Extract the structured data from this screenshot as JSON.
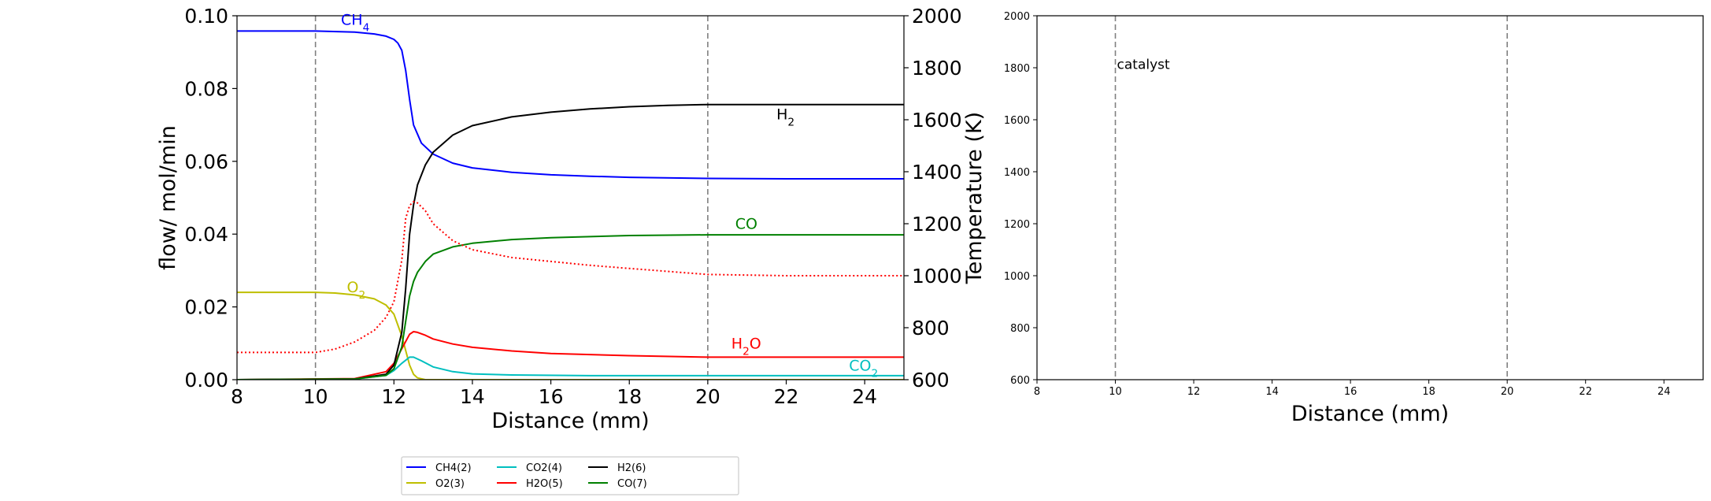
{
  "chart_data": [
    {
      "type": "line",
      "xlabel": "Distance (mm)",
      "ylabel": "flow/ mol/min",
      "y2label": "Temperature (K)",
      "xlim": [
        8,
        25
      ],
      "ylim": [
        0,
        0.1
      ],
      "y2lim": [
        600,
        2000
      ],
      "xticks": [
        "8",
        "10",
        "12",
        "14",
        "16",
        "18",
        "20",
        "22",
        "24"
      ],
      "yticks": [
        "0.00",
        "0.02",
        "0.04",
        "0.06",
        "0.08",
        "0.10"
      ],
      "y2ticks": [
        "600",
        "800",
        "1000",
        "1200",
        "1400",
        "1600",
        "1800",
        "2000"
      ],
      "grid": false,
      "vlines": [
        10,
        20
      ],
      "series": [
        {
          "name": "CH4(2)",
          "color": "#0000ff",
          "label": "CH",
          "label_sub": "4",
          "x": [
            8,
            10,
            11,
            11.5,
            11.8,
            12.0,
            12.1,
            12.2,
            12.3,
            12.4,
            12.5,
            12.7,
            13,
            13.5,
            14,
            15,
            16,
            17,
            18,
            20,
            22,
            25
          ],
          "y": [
            0.0958,
            0.0958,
            0.0955,
            0.095,
            0.0944,
            0.0935,
            0.0925,
            0.0905,
            0.085,
            0.077,
            0.07,
            0.065,
            0.062,
            0.0595,
            0.0582,
            0.057,
            0.0563,
            0.0559,
            0.0556,
            0.0553,
            0.0552,
            0.0552
          ]
        },
        {
          "name": "O2(3)",
          "color": "#bfbf00",
          "label": "O",
          "label_sub": "2",
          "x": [
            8,
            10,
            10.5,
            11,
            11.5,
            11.8,
            12.0,
            12.2,
            12.4,
            12.5,
            12.6,
            12.8,
            25
          ],
          "y": [
            0.024,
            0.024,
            0.0238,
            0.0233,
            0.0222,
            0.0205,
            0.018,
            0.012,
            0.004,
            0.0015,
            0.0005,
            0.0,
            0.0
          ]
        },
        {
          "name": "CO2(4)",
          "color": "#00bfbf",
          "label": "CO",
          "label_sub": "2",
          "x": [
            8,
            11,
            11.8,
            12.0,
            12.2,
            12.4,
            12.5,
            12.7,
            13,
            13.5,
            14,
            15,
            17,
            20,
            25
          ],
          "y": [
            0.0,
            0.0002,
            0.0012,
            0.0025,
            0.0045,
            0.0062,
            0.0062,
            0.0052,
            0.0035,
            0.0022,
            0.0016,
            0.0013,
            0.0011,
            0.0011,
            0.0011
          ]
        },
        {
          "name": "H2O(5)",
          "color": "#ff0000",
          "label": "H",
          "label_sub": "2",
          "label_tail": "O",
          "x": [
            8,
            11,
            11.8,
            12.0,
            12.2,
            12.4,
            12.5,
            12.6,
            12.8,
            13,
            13.5,
            14,
            15,
            16,
            18,
            20,
            22,
            25
          ],
          "y": [
            0.0,
            0.0003,
            0.0022,
            0.0045,
            0.0085,
            0.0125,
            0.0132,
            0.013,
            0.0122,
            0.0112,
            0.0098,
            0.0089,
            0.0079,
            0.0072,
            0.0066,
            0.0062,
            0.0062,
            0.0062
          ]
        },
        {
          "name": "H2(6)",
          "color": "#000000",
          "label": "H",
          "label_sub": "2",
          "x": [
            8,
            11,
            11.8,
            12.0,
            12.2,
            12.3,
            12.4,
            12.5,
            12.6,
            12.8,
            13,
            13.5,
            14,
            15,
            16,
            17,
            18,
            19,
            20,
            22,
            25
          ],
          "y": [
            0.0,
            0.0002,
            0.0015,
            0.004,
            0.013,
            0.025,
            0.04,
            0.048,
            0.0535,
            0.059,
            0.0625,
            0.0672,
            0.0698,
            0.0722,
            0.0735,
            0.0744,
            0.075,
            0.0754,
            0.0756,
            0.0756,
            0.0756
          ]
        },
        {
          "name": "CO(7)",
          "color": "#008000",
          "label": "CO",
          "x": [
            8,
            11,
            11.8,
            12.0,
            12.2,
            12.3,
            12.4,
            12.5,
            12.6,
            12.8,
            13,
            13.5,
            14,
            15,
            16,
            17,
            18,
            20,
            22,
            25
          ],
          "y": [
            0.0,
            0.0002,
            0.0012,
            0.003,
            0.009,
            0.016,
            0.023,
            0.027,
            0.0295,
            0.0325,
            0.0345,
            0.0365,
            0.0375,
            0.0385,
            0.039,
            0.0393,
            0.0396,
            0.0398,
            0.0398,
            0.0398
          ]
        }
      ],
      "temperature_series": {
        "color": "#ff0000",
        "style": "dotted",
        "x": [
          8,
          10,
          10.5,
          11,
          11.5,
          11.8,
          12.0,
          12.2,
          12.3,
          12.4,
          12.5,
          12.6,
          12.8,
          13,
          13.5,
          14,
          15,
          16,
          17,
          18,
          20,
          22,
          25
        ],
        "y": [
          705,
          705,
          718,
          745,
          790,
          840,
          900,
          1060,
          1220,
          1270,
          1285,
          1280,
          1250,
          1200,
          1135,
          1100,
          1070,
          1055,
          1040,
          1028,
          1005,
          1000,
          1000
        ]
      },
      "legend": {
        "placement": "below",
        "columns": 4,
        "entries": [
          "CH4(2)",
          "O2(3)",
          "CO2(4)",
          "H2O(5)",
          "H2(6)",
          "CO(7)"
        ]
      }
    },
    {
      "type": "line",
      "xlabel": "Distance (mm)",
      "ylabel": "",
      "xlim": [
        8,
        25
      ],
      "ylim": [
        600,
        2000
      ],
      "xticks": [
        "8",
        "10",
        "12",
        "14",
        "16",
        "18",
        "20",
        "22",
        "24"
      ],
      "yticks": [
        "600",
        "800",
        "1000",
        "1200",
        "1400",
        "1600",
        "1800",
        "2000"
      ],
      "grid": false,
      "vlines": [
        10,
        20
      ],
      "annotation": "catalyst",
      "series": []
    }
  ]
}
